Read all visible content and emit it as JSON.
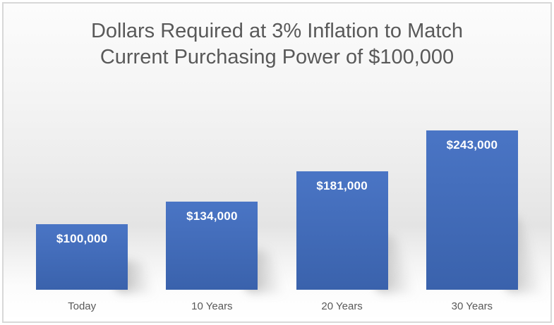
{
  "chart_data": {
    "type": "bar",
    "title": "Dollars Required at 3% Inflation to Match Current Purchasing Power of $100,000",
    "title_lines": [
      "Dollars Required at 3% Inflation to Match",
      "Current Purchasing Power of $100,000"
    ],
    "categories": [
      "Today",
      "10 Years",
      "20 Years",
      "30 Years"
    ],
    "values": [
      100000,
      134000,
      181000,
      243000
    ],
    "value_labels": [
      "$100,000",
      "$134,000",
      "$181,000",
      "$243,000"
    ],
    "xlabel": "",
    "ylabel": "",
    "ylim": [
      0,
      260000
    ],
    "grid": false,
    "legend": false,
    "axis_lines": false,
    "data_labels_position": "inside-top",
    "colors": {
      "bar_gradient_top": "#4a75c5",
      "bar_gradient_bottom": "#3a62ac",
      "bar_label": "#ffffff",
      "title_text": "#595959",
      "category_text": "#595959",
      "frame_border": "#d8d8d8",
      "background_light": "#fcfcfc",
      "background_shade": "#e4e4e4"
    }
  }
}
